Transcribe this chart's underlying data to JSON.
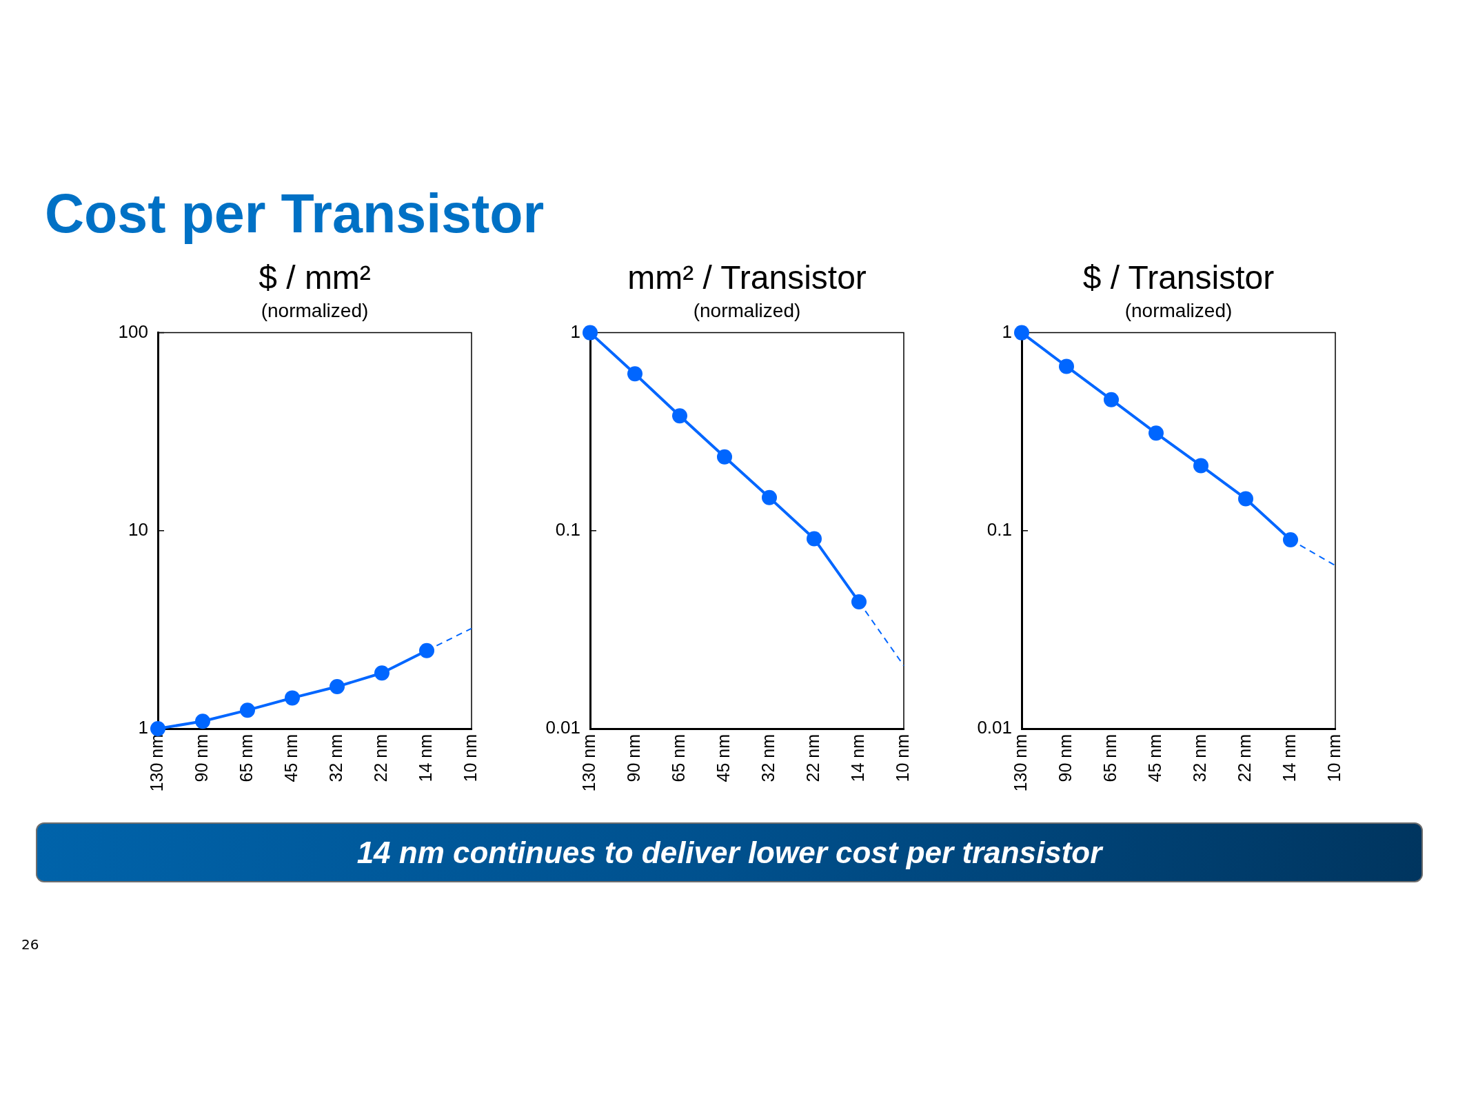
{
  "chart_data": [
    {
      "type": "other",
      "title": "Cost per Transistor"
    },
    {
      "type": "line",
      "title": "$ / mm²",
      "subtitle": "(normalized)",
      "categories": [
        "130 nm",
        "90 nm",
        "65 nm",
        "45 nm",
        "32 nm",
        "22 nm",
        "14 nm",
        "10 nm"
      ],
      "log": true,
      "ylim": [
        1,
        100
      ],
      "yticks": [
        1,
        10,
        100
      ],
      "marker": "circle",
      "line_style": "solid",
      "series": [
        {
          "color": "#0066ff",
          "values": [
            1,
            1.09,
            1.24,
            1.43,
            1.63,
            1.91,
            2.48,
            null
          ]
        },
        {
          "color": "#0066ff",
          "line_style": "dashed",
          "marker": "none",
          "values": [
            null,
            null,
            null,
            null,
            null,
            null,
            2.48,
            3.21
          ]
        }
      ]
    },
    {
      "type": "line",
      "title": "mm² / Transistor",
      "subtitle": "(normalized)",
      "categories": [
        "130 nm",
        "90 nm",
        "65 nm",
        "45 nm",
        "32 nm",
        "22 nm",
        "14 nm",
        "10 nm"
      ],
      "log": true,
      "ylim": [
        0.01,
        1
      ],
      "yticks": [
        0.01,
        0.1,
        1
      ],
      "marker": "circle",
      "line_style": "solid",
      "series": [
        {
          "color": "#0066ff",
          "values": [
            1,
            0.62,
            0.38,
            0.236,
            0.147,
            0.091,
            0.0437,
            null
          ]
        },
        {
          "color": "#0066ff",
          "line_style": "dashed",
          "marker": "none",
          "values": [
            null,
            null,
            null,
            null,
            null,
            null,
            0.0437,
            0.0208
          ]
        }
      ]
    },
    {
      "type": "line",
      "title": "$ / Transistor",
      "subtitle": "(normalized)",
      "categories": [
        "130 nm",
        "90 nm",
        "65 nm",
        "45 nm",
        "32 nm",
        "22 nm",
        "14 nm",
        "10 nm"
      ],
      "log": true,
      "ylim": [
        0.01,
        1
      ],
      "yticks": [
        0.01,
        0.1,
        1
      ],
      "marker": "circle",
      "line_style": "solid",
      "series": [
        {
          "color": "#0066ff",
          "values": [
            1,
            0.676,
            0.459,
            0.311,
            0.213,
            0.145,
            0.09,
            null
          ]
        },
        {
          "color": "#0066ff",
          "line_style": "dashed",
          "marker": "none",
          "values": [
            null,
            null,
            null,
            null,
            null,
            null,
            0.09,
            0.0667
          ]
        }
      ]
    },
    {
      "type": "other",
      "annotations": [
        "14 nm continues to deliver lower cost per transistor",
        "26"
      ]
    }
  ]
}
